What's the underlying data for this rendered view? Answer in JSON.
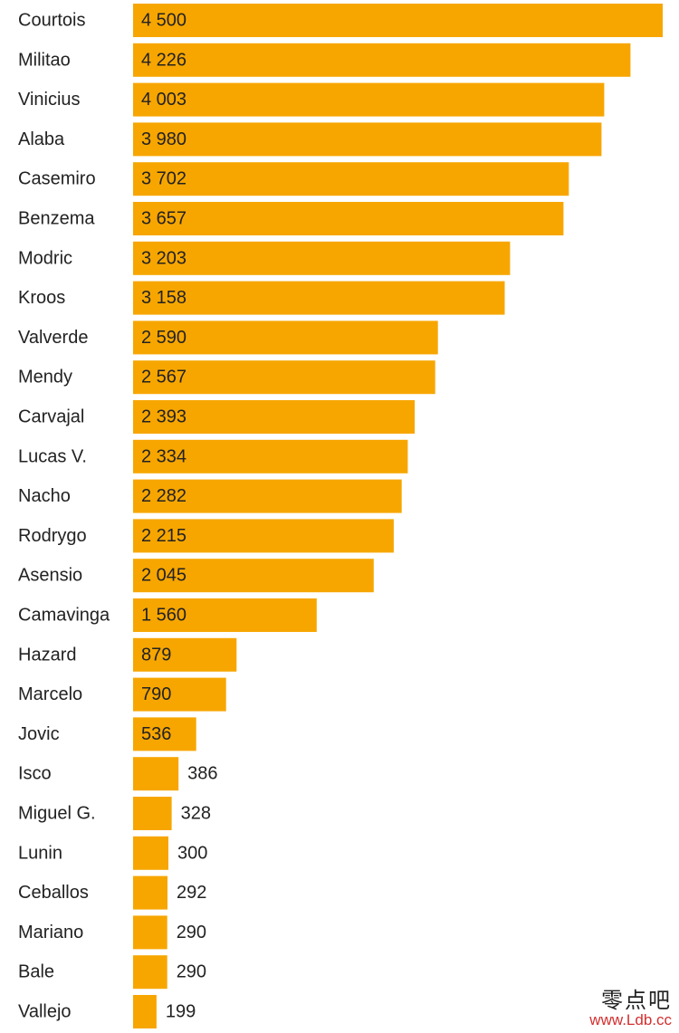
{
  "chart_data": {
    "type": "bar",
    "orientation": "horizontal",
    "categories": [
      "Courtois",
      "Militao",
      "Vinicius",
      "Alaba",
      "Casemiro",
      "Benzema",
      "Modric",
      "Kroos",
      "Valverde",
      "Mendy",
      "Carvajal",
      "Lucas V.",
      "Nacho",
      "Rodrygo",
      "Asensio",
      "Camavinga",
      "Hazard",
      "Marcelo",
      "Jovic",
      "Isco",
      "Miguel G.",
      "Lunin",
      "Ceballos",
      "Mariano",
      "Bale",
      "Vallejo"
    ],
    "values": [
      4500,
      4226,
      4003,
      3980,
      3702,
      3657,
      3203,
      3158,
      2590,
      2567,
      2393,
      2334,
      2282,
      2215,
      2045,
      1560,
      879,
      790,
      536,
      386,
      328,
      300,
      292,
      290,
      290,
      199
    ],
    "value_labels": [
      "4 500",
      "4 226",
      "4 003",
      "3 980",
      "3 702",
      "3 657",
      "3 203",
      "3 158",
      "2 590",
      "2 567",
      "2 393",
      "2 334",
      "2 282",
      "2 215",
      "2 045",
      "1 560",
      "879",
      "790",
      "536",
      "386",
      "328",
      "300",
      "292",
      "290",
      "290",
      "199"
    ],
    "xlim": [
      0,
      4500
    ],
    "bar_color": "#F7A600",
    "grid": false,
    "legend": "none"
  },
  "watermark": {
    "name": "零点吧",
    "url": "www.Ldb.cc"
  }
}
